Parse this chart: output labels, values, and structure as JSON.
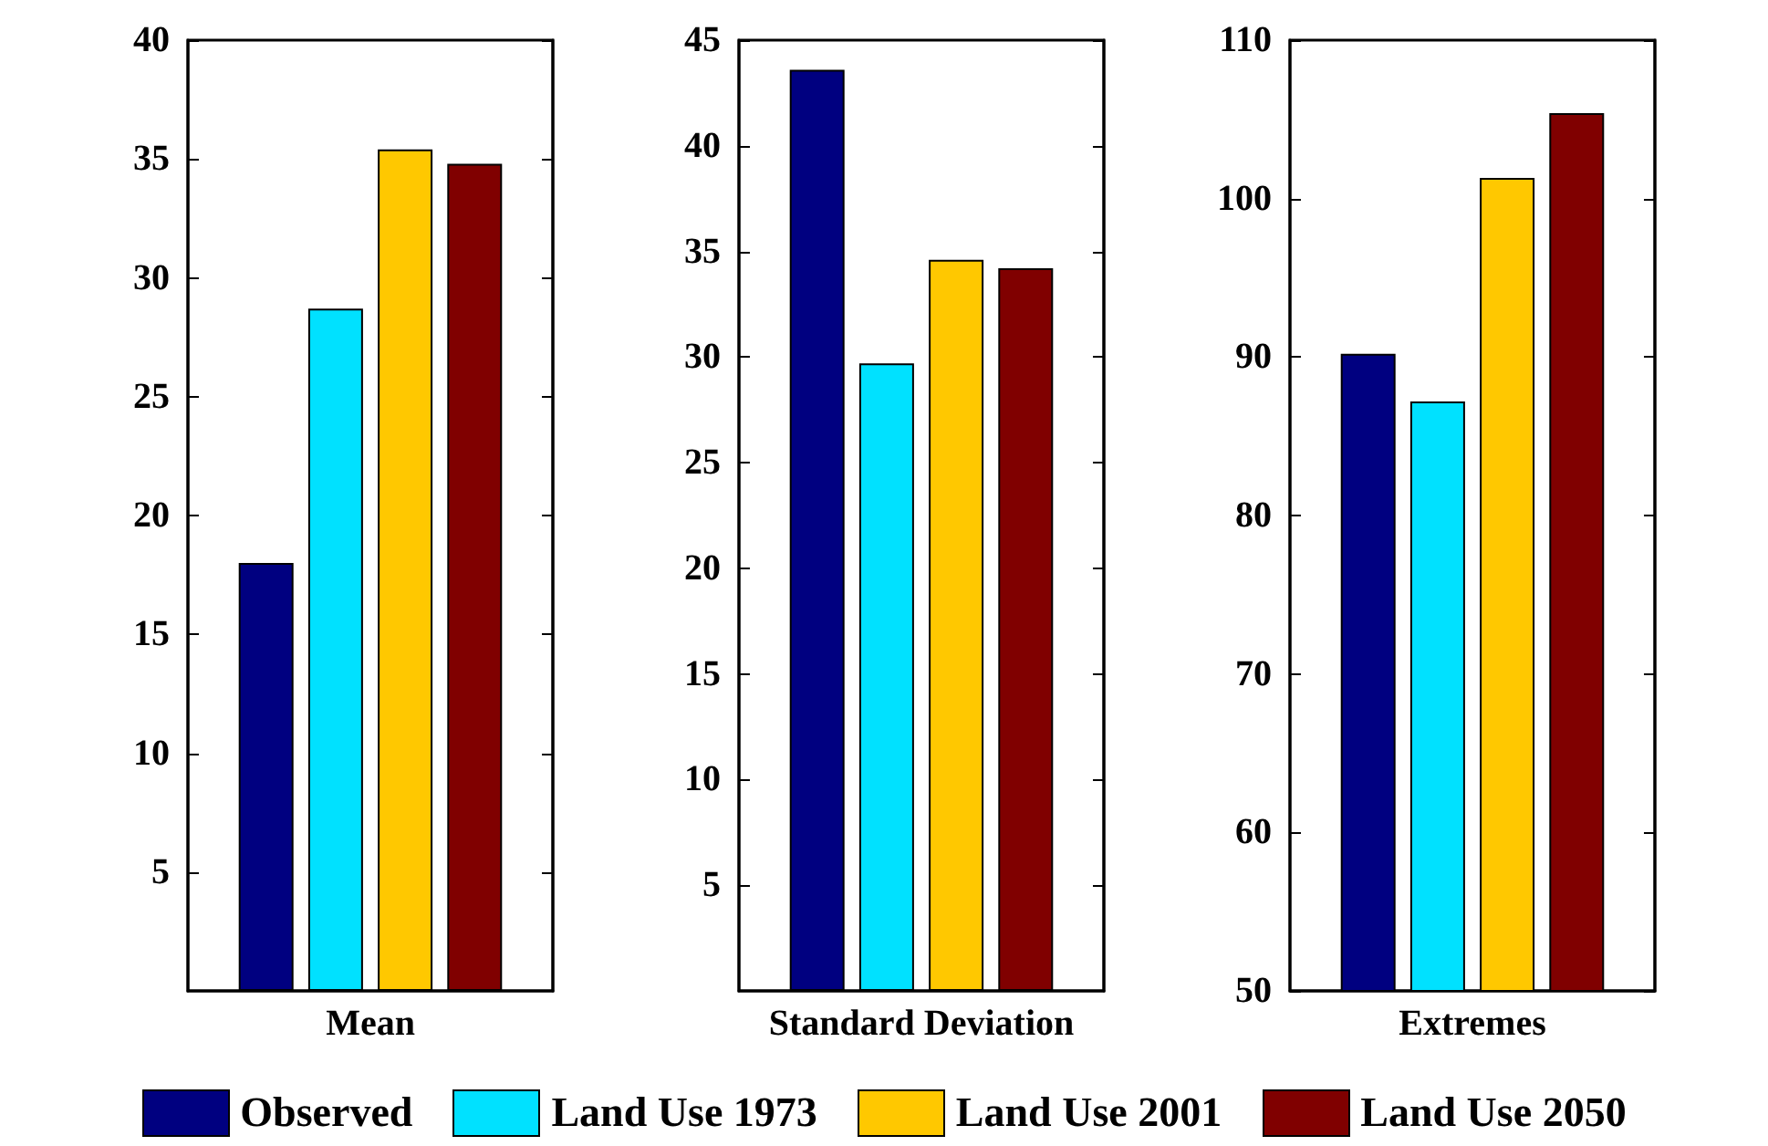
{
  "chart_data": [
    {
      "type": "bar",
      "categories": [
        "Mean"
      ],
      "ylim": [
        0,
        40
      ],
      "yticks": [
        5,
        10,
        15,
        20,
        25,
        30,
        35,
        40
      ],
      "grid": false,
      "legend": "bottom",
      "series": [
        {
          "name": "Observed",
          "color": "#000080",
          "values": [
            18.0
          ]
        },
        {
          "name": "Land Use 1973",
          "color": "#00e1ff",
          "values": [
            28.7
          ]
        },
        {
          "name": "Land Use 2001",
          "color": "#ffc800",
          "values": [
            35.4
          ]
        },
        {
          "name": "Land Use 2050",
          "color": "#800000",
          "values": [
            34.8
          ]
        }
      ]
    },
    {
      "type": "bar",
      "categories": [
        "Standard Deviation"
      ],
      "ylim": [
        0,
        45
      ],
      "yticks": [
        5,
        10,
        15,
        20,
        25,
        30,
        35,
        40,
        45
      ],
      "grid": false,
      "series": [
        {
          "color": "#000080",
          "values": [
            43.6
          ]
        },
        {
          "color": "#00e1ff",
          "values": [
            29.7
          ]
        },
        {
          "color": "#ffc800",
          "values": [
            34.6
          ]
        },
        {
          "color": "#800000",
          "values": [
            34.2
          ]
        }
      ]
    },
    {
      "type": "bar",
      "categories": [
        "Extremes"
      ],
      "ylim": [
        50,
        110
      ],
      "yticks": [
        50,
        60,
        70,
        80,
        90,
        100,
        110
      ],
      "grid": false,
      "series": [
        {
          "color": "#000080",
          "values": [
            90.2
          ]
        },
        {
          "color": "#00e1ff",
          "values": [
            87.2
          ]
        },
        {
          "color": "#ffc800",
          "values": [
            101.3
          ]
        },
        {
          "color": "#800000",
          "values": [
            105.4
          ]
        }
      ]
    }
  ]
}
